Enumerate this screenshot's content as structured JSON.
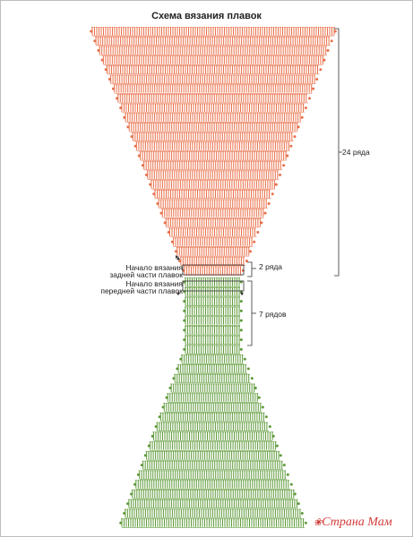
{
  "title": "Схема вязания плавок",
  "labels": {
    "rows_24": "24 ряда",
    "rows_2": "2 ряда",
    "rows_7": "7 рядов",
    "start_back_1": "Начало вязания",
    "start_back_2": "задней части плавок",
    "start_front_1": "Начало вязания",
    "start_front_2": "передней части плавок"
  },
  "watermark": "Страна Мам",
  "colors": {
    "back": "#e8704a",
    "front": "#5f9a3a",
    "marks": "#333333"
  }
}
